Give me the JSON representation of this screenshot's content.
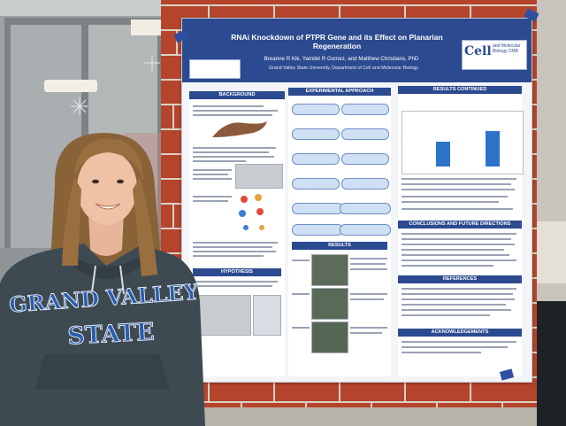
{
  "poster": {
    "title": "RNAi Knockdown of PTPR Gene and its Effect on Planarian Regeneration",
    "authors": "Breanne R Kik, Yamilet R Gomez, and Matthew Christians, PhD",
    "affiliation": "Grand Valley State University, Department of Cell and Molecular Biology",
    "logo_text": "Cell",
    "logo_subtext": "and Molecular Biology CMB",
    "sections": {
      "background": "BACKGROUND",
      "approach": "EXPERIMENTAL APPROACH",
      "results_continued": "RESULTS CONTINUED",
      "results": "RESULTS",
      "conclusions": "CONCLUSIONS AND FUTURE DIRECTIONS",
      "references": "REFERENCES",
      "acknowledgements": "ACKNOWLEDGEMENTS",
      "hypothesis": "HYPOTHESIS"
    }
  },
  "sweatshirt": {
    "line1": "GRAND VALLEY",
    "line2": "STATE"
  },
  "colors": {
    "poster_blue": "#2b4a8f",
    "brick": "#b5442c",
    "sweatshirt": "#3e4a52",
    "lettering": "#2a5db0"
  }
}
